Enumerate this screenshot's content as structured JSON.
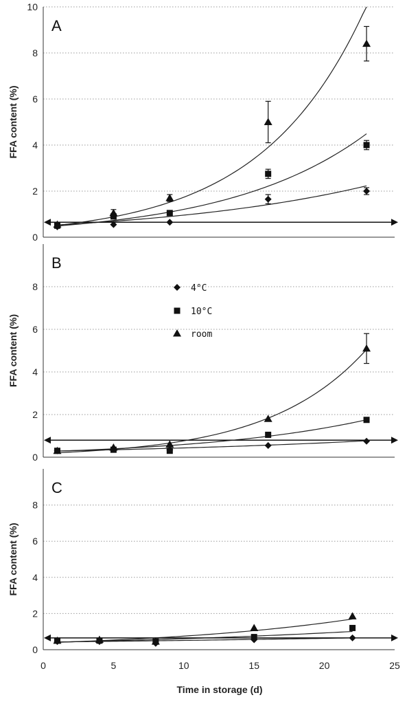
{
  "chart_data": {
    "type": "scatter",
    "xlabel": "Time in storage (d)",
    "ylabel": "FFA content (%)",
    "xlim": [
      0,
      25
    ],
    "xticks": [
      0,
      5,
      10,
      15,
      20,
      25
    ],
    "grid": "horizontal dotted",
    "legend": {
      "placement": "panel B top-center",
      "entries": [
        {
          "key": "c4",
          "label": "4°C",
          "marker": "diamond"
        },
        {
          "key": "c10",
          "label": "10°C",
          "marker": "square"
        },
        {
          "key": "room",
          "label": "room",
          "marker": "triangle"
        }
      ]
    },
    "panels": [
      {
        "label": "A",
        "ylim": [
          0,
          10
        ],
        "yticks": [
          0,
          2,
          4,
          6,
          8,
          10
        ],
        "reference_line_y": 0.65,
        "series": [
          {
            "key": "c4",
            "x": [
              1,
              5,
              9,
              16,
              23
            ],
            "y": [
              0.45,
              0.55,
              0.65,
              1.65,
              2.0
            ],
            "err": [
              0.05,
              0.05,
              0.05,
              0.2,
              0.15
            ],
            "fit": {
              "a": 0.5,
              "b": 0.065
            }
          },
          {
            "key": "c10",
            "x": [
              1,
              5,
              9,
              16,
              23
            ],
            "y": [
              0.5,
              0.9,
              1.05,
              2.75,
              4.0
            ],
            "err": [
              0.05,
              0.1,
              0.1,
              0.2,
              0.2
            ],
            "fit": {
              "a": 0.44,
              "b": 0.101
            }
          },
          {
            "key": "room",
            "x": [
              1,
              5,
              9,
              16,
              23
            ],
            "y": [
              0.55,
              1.05,
              1.7,
              5.0,
              8.4
            ],
            "err": [
              0.05,
              0.15,
              0.15,
              0.9,
              0.75
            ],
            "fit": {
              "a": 0.45,
              "b": 0.135
            }
          }
        ]
      },
      {
        "label": "B",
        "ylim": [
          0,
          10
        ],
        "yticks": [
          0,
          2,
          4,
          6,
          8
        ],
        "reference_line_y": 0.8,
        "series": [
          {
            "key": "c4",
            "x": [
              1,
              5,
              9,
              16,
              23
            ],
            "y": [
              0.3,
              0.4,
              0.35,
              0.55,
              0.75
            ],
            "err": [
              0.03,
              0.03,
              0.05,
              0.05,
              0.15
            ],
            "fit": {
              "a": 0.28,
              "b": 0.044
            }
          },
          {
            "key": "c10",
            "x": [
              1,
              5,
              9,
              16,
              23
            ],
            "y": [
              0.3,
              0.35,
              0.3,
              1.05,
              1.75
            ],
            "err": [
              0.03,
              0.05,
              0.05,
              0.05,
              0.15
            ],
            "fit": {
              "a": 0.26,
              "b": 0.083
            }
          },
          {
            "key": "room",
            "x": [
              1,
              5,
              9,
              16,
              23
            ],
            "y": [
              0.3,
              0.45,
              0.6,
              1.8,
              5.1
            ],
            "err": [
              0.03,
              0.05,
              0.05,
              0.1,
              0.7
            ],
            "fit": {
              "a": 0.18,
              "b": 0.145
            }
          }
        ]
      },
      {
        "label": "C",
        "ylim": [
          0,
          10
        ],
        "yticks": [
          0,
          2,
          4,
          6,
          8
        ],
        "reference_line_y": 0.65,
        "series": [
          {
            "key": "c4",
            "x": [
              1,
              4,
              8,
              15,
              22
            ],
            "y": [
              0.45,
              0.45,
              0.35,
              0.55,
              0.65
            ],
            "err": [
              0.05,
              0.05,
              0.05,
              0.05,
              0.05
            ],
            "fit": {
              "a": 0.42,
              "b": 0.02
            }
          },
          {
            "key": "c10",
            "x": [
              1,
              4,
              8,
              15,
              22
            ],
            "y": [
              0.5,
              0.5,
              0.45,
              0.7,
              1.2
            ],
            "err": [
              0.05,
              0.05,
              0.05,
              0.05,
              0.1
            ],
            "fit": {
              "a": 0.4,
              "b": 0.042
            }
          },
          {
            "key": "room",
            "x": [
              1,
              4,
              8,
              15,
              22
            ],
            "y": [
              0.5,
              0.55,
              0.45,
              1.2,
              1.85
            ],
            "err": [
              0.05,
              0.05,
              0.05,
              0.05,
              0.12
            ],
            "fit": {
              "a": 0.38,
              "b": 0.068
            }
          }
        ]
      }
    ]
  }
}
